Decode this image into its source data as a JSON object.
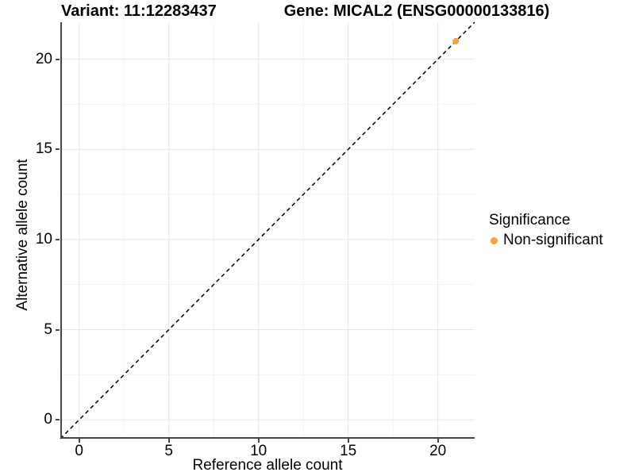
{
  "title": {
    "variant": "Variant: 11:12283437",
    "gene": "Gene: MICAL2 (ENSG00000133816)"
  },
  "legend": {
    "title": "Significance",
    "items": [
      {
        "label": "Non-significant",
        "color": "#FBA338"
      }
    ]
  },
  "colors": {
    "point": "#FBA338",
    "axis": "#464646",
    "grid_major": "#E6E6E6",
    "grid_minor": "#F2F2F2",
    "dashed_line": "#000000",
    "text": "#000000"
  },
  "chart_data": {
    "type": "scatter",
    "title": "Variant: 11:12283437    Gene: MICAL2 (ENSG00000133816)",
    "xlabel": "Reference allele count",
    "ylabel": "Alternative allele count",
    "xlim": [
      -1.05,
      22.05
    ],
    "ylim": [
      -1.05,
      22.05
    ],
    "xticks": [
      0,
      5,
      10,
      15,
      20
    ],
    "yticks": [
      0,
      5,
      10,
      15,
      20
    ],
    "minor_xticks": [
      2.5,
      7.5,
      12.5,
      17.5
    ],
    "minor_yticks": [
      2.5,
      7.5,
      12.5,
      17.5
    ],
    "grid": true,
    "legend_position": "right",
    "identity_line": {
      "slope": 1,
      "intercept": 0,
      "style": "dashed"
    },
    "series": [
      {
        "name": "Non-significant",
        "color": "#FBA338",
        "points": [
          [
            21,
            21
          ]
        ]
      }
    ]
  }
}
